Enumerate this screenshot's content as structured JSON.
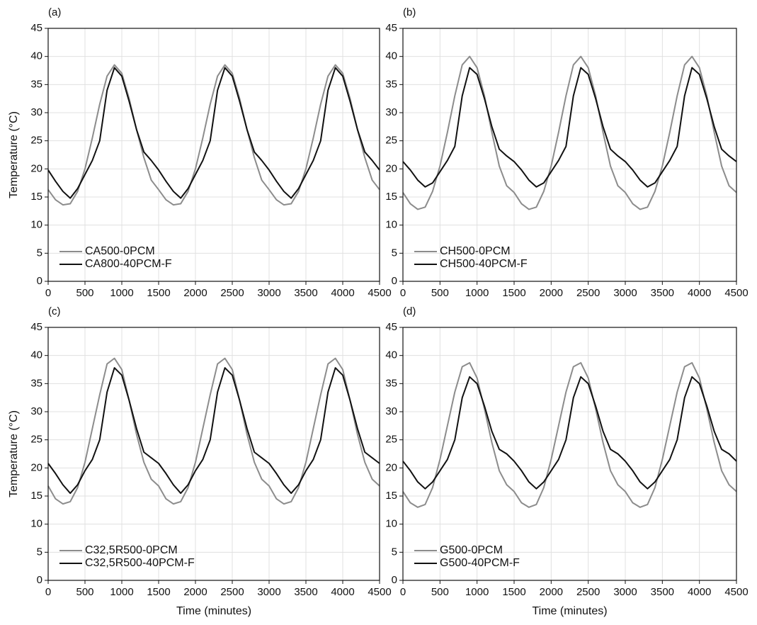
{
  "chart_data": [
    {
      "type": "line",
      "label": "(a)",
      "ylabel": "Temperature (°C)",
      "x": [
        0,
        100,
        200,
        300,
        400,
        500,
        600,
        700,
        800,
        900,
        1000,
        1100,
        1200,
        1300,
        1400,
        1500,
        1600,
        1700,
        1800,
        1900,
        2000,
        2100,
        2200,
        2300,
        2400,
        2500,
        2600,
        2700,
        2800,
        2900,
        3000,
        3100,
        3200,
        3300,
        3400,
        3500,
        3600,
        3700,
        3800,
        3900,
        4000,
        4100,
        4200,
        4300,
        4400,
        4500
      ],
      "series": [
        {
          "name": "CA500-0PCM",
          "color": "#8c8c8c",
          "values": [
            16.3,
            14.5,
            13.6,
            13.8,
            16,
            20,
            25.5,
            31.5,
            36.5,
            38.5,
            37,
            32.5,
            27,
            22,
            18,
            16.3,
            14.5,
            13.6,
            13.8,
            16,
            20,
            25.5,
            31.5,
            36.5,
            38.5,
            37,
            32.5,
            27,
            22,
            18,
            16.3,
            14.5,
            13.6,
            13.8,
            16,
            20,
            25.5,
            31.5,
            36.5,
            38.5,
            37,
            32.5,
            27,
            22,
            18,
            16.3
          ]
        },
        {
          "name": "CA800-40PCM-F",
          "color": "#111111",
          "values": [
            19.8,
            17.8,
            16,
            14.8,
            16.5,
            19,
            21.5,
            25,
            34,
            38,
            36.5,
            32,
            27,
            23,
            21.5,
            19.8,
            17.8,
            16,
            14.8,
            16.5,
            19,
            21.5,
            25,
            34,
            38,
            36.5,
            32,
            27,
            23,
            21.5,
            19.8,
            17.8,
            16,
            14.8,
            16.5,
            19,
            21.5,
            25,
            34,
            38,
            36.5,
            32,
            27,
            23,
            21.5,
            19.8
          ]
        }
      ],
      "xlim": [
        0,
        4500
      ],
      "ylim": [
        0,
        45
      ],
      "xticks": [
        0,
        500,
        1000,
        1500,
        2000,
        2500,
        3000,
        3500,
        4000,
        4500
      ],
      "yticks": [
        0,
        5,
        10,
        15,
        20,
        25,
        30,
        35,
        40,
        45
      ],
      "grid": true,
      "legend": "lower left"
    },
    {
      "type": "line",
      "label": "(b)",
      "x": [
        0,
        100,
        200,
        300,
        400,
        500,
        600,
        700,
        800,
        900,
        1000,
        1100,
        1200,
        1300,
        1400,
        1500,
        1600,
        1700,
        1800,
        1900,
        2000,
        2100,
        2200,
        2300,
        2400,
        2500,
        2600,
        2700,
        2800,
        2900,
        3000,
        3100,
        3200,
        3300,
        3400,
        3500,
        3600,
        3700,
        3800,
        3900,
        4000,
        4100,
        4200,
        4300,
        4400,
        4500
      ],
      "series": [
        {
          "name": "CH500-0PCM",
          "color": "#8c8c8c",
          "values": [
            15.8,
            13.8,
            12.8,
            13.2,
            16,
            20.5,
            26.5,
            33,
            38.5,
            40,
            38,
            33,
            26.5,
            20.5,
            17,
            15.8,
            13.8,
            12.8,
            13.2,
            16,
            20.5,
            26.5,
            33,
            38.5,
            40,
            38,
            33,
            26.5,
            20.5,
            17,
            15.8,
            13.8,
            12.8,
            13.2,
            16,
            20.5,
            26.5,
            33,
            38.5,
            40,
            38,
            33,
            26.5,
            20.5,
            17,
            15.8
          ]
        },
        {
          "name": "CH500-40PCM-F",
          "color": "#111111",
          "values": [
            21.3,
            19.8,
            18,
            16.8,
            17.5,
            19.5,
            21.5,
            24,
            33,
            38,
            36.8,
            32.5,
            27.5,
            23.5,
            22.3,
            21.3,
            19.8,
            18,
            16.8,
            17.5,
            19.5,
            21.5,
            24,
            33,
            38,
            36.8,
            32.5,
            27.5,
            23.5,
            22.3,
            21.3,
            19.8,
            18,
            16.8,
            17.5,
            19.5,
            21.5,
            24,
            33,
            38,
            36.8,
            32.5,
            27.5,
            23.5,
            22.3,
            21.3
          ]
        }
      ],
      "xlim": [
        0,
        4500
      ],
      "ylim": [
        0,
        45
      ],
      "xticks": [
        0,
        500,
        1000,
        1500,
        2000,
        2500,
        3000,
        3500,
        4000,
        4500
      ],
      "yticks": [
        0,
        5,
        10,
        15,
        20,
        25,
        30,
        35,
        40,
        45
      ],
      "grid": true,
      "legend": "lower left"
    },
    {
      "type": "line",
      "label": "(c)",
      "ylabel": "Temperature (°C)",
      "xlabel": "Time (minutes)",
      "x": [
        0,
        100,
        200,
        300,
        400,
        500,
        600,
        700,
        800,
        900,
        1000,
        1100,
        1200,
        1300,
        1400,
        1500,
        1600,
        1700,
        1800,
        1900,
        2000,
        2100,
        2200,
        2300,
        2400,
        2500,
        2600,
        2700,
        2800,
        2900,
        3000,
        3100,
        3200,
        3300,
        3400,
        3500,
        3600,
        3700,
        3800,
        3900,
        4000,
        4100,
        4200,
        4300,
        4400,
        4500
      ],
      "series": [
        {
          "name": "C32,5R500-0PCM",
          "color": "#8c8c8c",
          "values": [
            16.8,
            14.5,
            13.6,
            14,
            16.5,
            21,
            27,
            33,
            38.5,
            39.5,
            37.5,
            32,
            26,
            21,
            18,
            16.8,
            14.5,
            13.6,
            14,
            16.5,
            21,
            27,
            33,
            38.5,
            39.5,
            37.5,
            32,
            26,
            21,
            18,
            16.8,
            14.5,
            13.6,
            14,
            16.5,
            21,
            27,
            33,
            38.5,
            39.5,
            37.5,
            32,
            26,
            21,
            18,
            16.8
          ]
        },
        {
          "name": "C32,5R500-40PCM-F",
          "color": "#111111",
          "values": [
            20.8,
            19,
            17,
            15.5,
            17,
            19.5,
            21.5,
            25,
            33.5,
            37.8,
            36.5,
            32,
            27,
            22.8,
            21.8,
            20.8,
            19,
            17,
            15.5,
            17,
            19.5,
            21.5,
            25,
            33.5,
            37.8,
            36.5,
            32,
            27,
            22.8,
            21.8,
            20.8,
            19,
            17,
            15.5,
            17,
            19.5,
            21.5,
            25,
            33.5,
            37.8,
            36.5,
            32,
            27,
            22.8,
            21.8,
            20.8
          ]
        }
      ],
      "xlim": [
        0,
        4500
      ],
      "ylim": [
        0,
        45
      ],
      "xticks": [
        0,
        500,
        1000,
        1500,
        2000,
        2500,
        3000,
        3500,
        4000,
        4500
      ],
      "yticks": [
        0,
        5,
        10,
        15,
        20,
        25,
        30,
        35,
        40,
        45
      ],
      "grid": true,
      "legend": "lower left"
    },
    {
      "type": "line",
      "label": "(d)",
      "xlabel": "Time (minutes)",
      "x": [
        0,
        100,
        200,
        300,
        400,
        500,
        600,
        700,
        800,
        900,
        1000,
        1100,
        1200,
        1300,
        1400,
        1500,
        1600,
        1700,
        1800,
        1900,
        2000,
        2100,
        2200,
        2300,
        2400,
        2500,
        2600,
        2700,
        2800,
        2900,
        3000,
        3100,
        3200,
        3300,
        3400,
        3500,
        3600,
        3700,
        3800,
        3900,
        4000,
        4100,
        4200,
        4300,
        4400,
        4500
      ],
      "series": [
        {
          "name": "G500-0PCM",
          "color": "#8c8c8c",
          "values": [
            15.8,
            13.8,
            13,
            13.5,
            16.5,
            21.5,
            27.5,
            33.5,
            38,
            38.7,
            36,
            30.5,
            24.5,
            19.5,
            17,
            15.8,
            13.8,
            13,
            13.5,
            16.5,
            21.5,
            27.5,
            33.5,
            38,
            38.7,
            36,
            30.5,
            24.5,
            19.5,
            17,
            15.8,
            13.8,
            13,
            13.5,
            16.5,
            21.5,
            27.5,
            33.5,
            38,
            38.7,
            36,
            30.5,
            24.5,
            19.5,
            17,
            15.8
          ]
        },
        {
          "name": "G500-40PCM-F",
          "color": "#111111",
          "values": [
            21.2,
            19.5,
            17.5,
            16.3,
            17.5,
            19.5,
            21.5,
            25,
            32.5,
            36.2,
            35,
            31,
            26.5,
            23.3,
            22.5,
            21.2,
            19.5,
            17.5,
            16.3,
            17.5,
            19.5,
            21.5,
            25,
            32.5,
            36.2,
            35,
            31,
            26.5,
            23.3,
            22.5,
            21.2,
            19.5,
            17.5,
            16.3,
            17.5,
            19.5,
            21.5,
            25,
            32.5,
            36.2,
            35,
            31,
            26.5,
            23.3,
            22.5,
            21.2
          ]
        }
      ],
      "xlim": [
        0,
        4500
      ],
      "ylim": [
        0,
        45
      ],
      "xticks": [
        0,
        500,
        1000,
        1500,
        2000,
        2500,
        3000,
        3500,
        4000,
        4500
      ],
      "yticks": [
        0,
        5,
        10,
        15,
        20,
        25,
        30,
        35,
        40,
        45
      ],
      "grid": true,
      "legend": "lower left"
    }
  ]
}
